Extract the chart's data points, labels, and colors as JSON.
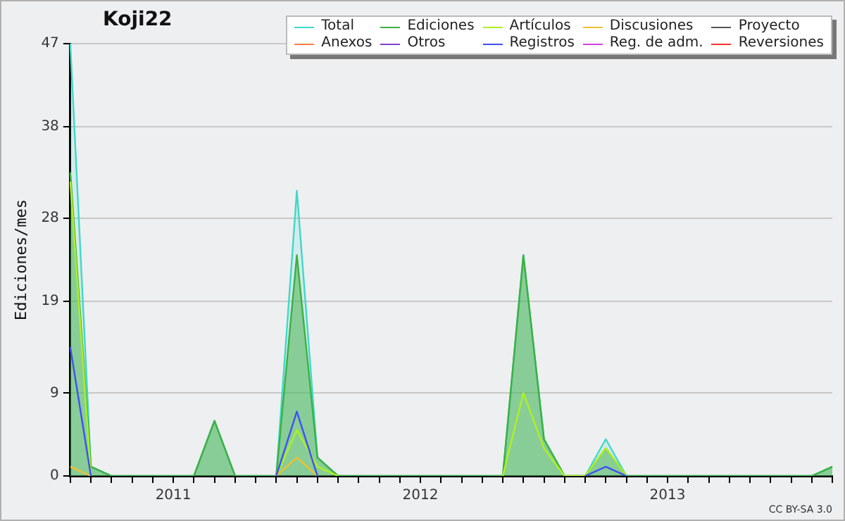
{
  "chart_data": {
    "type": "line",
    "title": "Koji22",
    "ylabel": "Ediciones/mes",
    "categories": [
      null,
      null,
      null,
      null,
      null,
      "2011",
      null,
      null,
      null,
      null,
      null,
      null,
      null,
      null,
      null,
      null,
      null,
      "2012",
      null,
      null,
      null,
      null,
      null,
      null,
      null,
      null,
      null,
      null,
      null,
      "2013",
      null,
      null,
      null,
      null,
      null,
      null,
      null,
      null
    ],
    "series": [
      {
        "name": "Total",
        "type": "area",
        "color": "#40d8c8",
        "values": [
          47,
          1,
          0,
          0,
          0,
          0,
          0,
          6,
          0,
          0,
          0,
          31,
          2,
          0,
          0,
          0,
          0,
          0,
          0,
          0,
          0,
          0,
          24,
          4,
          0,
          0,
          4,
          0,
          0,
          0,
          0,
          0,
          0,
          0,
          0,
          0,
          0,
          1
        ]
      },
      {
        "name": "Ediciones",
        "type": "area",
        "color": "#3cb043",
        "values": [
          33,
          1,
          0,
          0,
          0,
          0,
          0,
          6,
          0,
          0,
          0,
          24,
          2,
          0,
          0,
          0,
          0,
          0,
          0,
          0,
          0,
          0,
          24,
          4,
          0,
          0,
          3,
          0,
          0,
          0,
          0,
          0,
          0,
          0,
          0,
          0,
          0,
          1
        ]
      },
      {
        "name": "Artículos",
        "color": "#b0f020",
        "values": [
          32,
          0,
          null,
          null,
          null,
          null,
          null,
          null,
          null,
          null,
          0,
          5,
          1,
          0,
          null,
          null,
          null,
          null,
          null,
          null,
          null,
          0,
          9,
          3,
          0,
          0,
          3,
          0,
          null,
          null,
          null,
          null,
          null,
          null,
          null,
          null,
          null,
          null
        ]
      },
      {
        "name": "Discusiones",
        "color": "#f0c030",
        "values": [
          1,
          0,
          null,
          null,
          null,
          null,
          null,
          null,
          null,
          null,
          0,
          2,
          0,
          null,
          null,
          null,
          null,
          null,
          null,
          null,
          null,
          null,
          null,
          null,
          null,
          null,
          null,
          null,
          null,
          null,
          null,
          null,
          null,
          null,
          null,
          null,
          null,
          null
        ]
      },
      {
        "name": "Proyecto",
        "color": "#555555",
        "values": [
          null,
          null,
          null,
          null,
          null,
          null,
          null,
          null,
          null,
          null,
          null,
          null,
          null,
          null,
          null,
          null,
          null,
          null,
          null,
          null,
          null,
          null,
          null,
          null,
          null,
          null,
          null,
          null,
          null,
          null,
          null,
          null,
          null,
          null,
          null,
          null,
          null,
          null
        ]
      },
      {
        "name": "Anexos",
        "color": "#ff7f40",
        "values": [
          null,
          null,
          null,
          null,
          null,
          null,
          null,
          null,
          null,
          null,
          null,
          null,
          null,
          null,
          null,
          null,
          null,
          null,
          null,
          null,
          null,
          null,
          null,
          null,
          null,
          null,
          null,
          null,
          null,
          null,
          null,
          null,
          null,
          null,
          null,
          null,
          null,
          null
        ]
      },
      {
        "name": "Otros",
        "color": "#8040d0",
        "values": [
          null,
          null,
          null,
          null,
          null,
          null,
          null,
          null,
          null,
          null,
          null,
          null,
          null,
          null,
          null,
          null,
          null,
          null,
          null,
          null,
          null,
          null,
          null,
          null,
          null,
          null,
          null,
          null,
          null,
          null,
          null,
          null,
          null,
          null,
          null,
          null,
          null,
          null
        ]
      },
      {
        "name": "Registros",
        "color": "#4050f0",
        "values": [
          14,
          0,
          null,
          null,
          null,
          null,
          null,
          null,
          null,
          null,
          0,
          7,
          0,
          null,
          null,
          null,
          null,
          null,
          null,
          null,
          null,
          null,
          null,
          null,
          null,
          0,
          1,
          0,
          null,
          null,
          null,
          null,
          null,
          null,
          null,
          null,
          null,
          null
        ]
      },
      {
        "name": "Reg. de adm.",
        "color": "#d040e0",
        "values": [
          null,
          null,
          null,
          null,
          null,
          null,
          null,
          null,
          null,
          null,
          null,
          null,
          null,
          null,
          null,
          null,
          null,
          null,
          null,
          null,
          null,
          null,
          null,
          null,
          null,
          null,
          null,
          null,
          null,
          null,
          null,
          null,
          null,
          null,
          null,
          null,
          null,
          null
        ]
      },
      {
        "name": "Reversiones",
        "color": "#ff3030",
        "values": [
          null,
          null,
          null,
          null,
          null,
          null,
          null,
          null,
          null,
          null,
          null,
          null,
          null,
          null,
          null,
          null,
          null,
          null,
          null,
          null,
          null,
          null,
          null,
          null,
          null,
          null,
          null,
          null,
          null,
          null,
          null,
          null,
          null,
          null,
          null,
          null,
          null,
          null
        ]
      }
    ],
    "ylim": [
      0,
      47
    ],
    "yticks": [
      0,
      9,
      19,
      28,
      38,
      47
    ],
    "grid": "y",
    "legend": "top right",
    "marker": "none",
    "annotations": [
      "CC BY-SA 3.0"
    ]
  }
}
